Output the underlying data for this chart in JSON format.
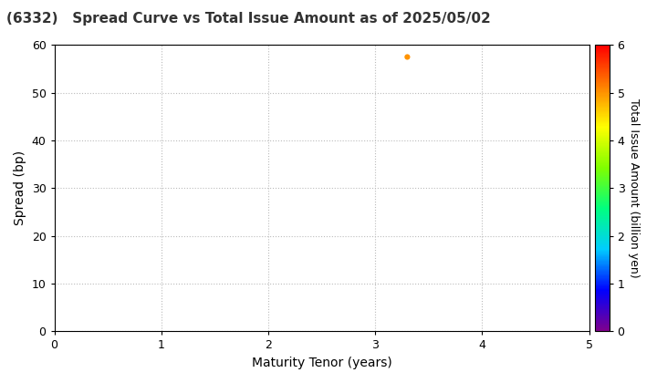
{
  "title": "(6332)   Spread Curve vs Total Issue Amount as of 2025/05/02",
  "xlabel": "Maturity Tenor (years)",
  "ylabel": "Spread (bp)",
  "colorbar_label": "Total Issue Amount (billion yen)",
  "xlim": [
    0,
    5
  ],
  "ylim": [
    0,
    60
  ],
  "xticks": [
    0,
    1,
    2,
    3,
    4,
    5
  ],
  "yticks": [
    0,
    10,
    20,
    30,
    40,
    50,
    60
  ],
  "colorbar_ticks": [
    0,
    1,
    2,
    3,
    4,
    5,
    6
  ],
  "colorbar_min": 0,
  "colorbar_max": 6,
  "scatter_x": [
    3.3
  ],
  "scatter_y": [
    57.5
  ],
  "scatter_color_value": [
    5.0
  ],
  "scatter_size": 20,
  "background_color": "#ffffff",
  "grid_color": "#bbbbbb",
  "title_fontsize": 11,
  "axis_fontsize": 10,
  "tick_fontsize": 9,
  "cbar_fontsize": 9
}
